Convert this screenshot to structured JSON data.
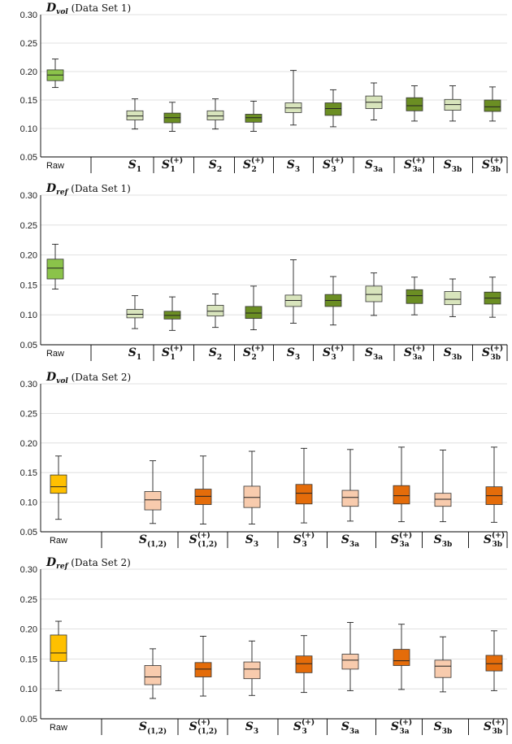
{
  "chart_data": [
    {
      "type": "box",
      "title": "D_vol (Data Set 1)",
      "title_parts": {
        "main": "D",
        "sub": "vol",
        "rest": "(Data Set 1)"
      },
      "ylim": [
        0.05,
        0.3
      ],
      "yticks": [
        "0.30",
        "0.25",
        "0.20",
        "0.15",
        "0.10",
        "0.05"
      ],
      "grid": true,
      "categories": [
        {
          "label": "Raw",
          "raw": true,
          "color": "#8bc34a",
          "min": 0.172,
          "q1": 0.184,
          "median": 0.194,
          "q3": 0.203,
          "max": 0.222
        },
        {
          "label": "S",
          "sub": "1",
          "sup": "",
          "color": "#d8e4bc",
          "min": 0.099,
          "q1": 0.115,
          "median": 0.122,
          "q3": 0.131,
          "max": 0.152
        },
        {
          "label": "S",
          "sub": "1",
          "sup": "(+)",
          "color": "#6b8e23",
          "min": 0.095,
          "q1": 0.11,
          "median": 0.119,
          "q3": 0.127,
          "max": 0.146
        },
        {
          "label": "S",
          "sub": "2",
          "sup": "",
          "color": "#d8e4bc",
          "min": 0.099,
          "q1": 0.115,
          "median": 0.122,
          "q3": 0.131,
          "max": 0.152
        },
        {
          "label": "S",
          "sub": "2",
          "sup": "(+)",
          "color": "#6b8e23",
          "min": 0.095,
          "q1": 0.111,
          "median": 0.119,
          "q3": 0.125,
          "max": 0.148
        },
        {
          "label": "S",
          "sub": "3",
          "sup": "",
          "color": "#d8e4bc",
          "min": 0.106,
          "q1": 0.128,
          "median": 0.136,
          "q3": 0.145,
          "max": 0.202
        },
        {
          "label": "S",
          "sub": "3",
          "sup": "(+)",
          "color": "#6b8e23",
          "min": 0.103,
          "q1": 0.123,
          "median": 0.135,
          "q3": 0.145,
          "max": 0.168
        },
        {
          "label": "S",
          "sub": "3a",
          "sup": "",
          "color": "#d8e4bc",
          "min": 0.115,
          "q1": 0.135,
          "median": 0.146,
          "q3": 0.157,
          "max": 0.18
        },
        {
          "label": "S",
          "sub": "3a",
          "sup": "(+)",
          "color": "#6b8e23",
          "min": 0.113,
          "q1": 0.131,
          "median": 0.14,
          "q3": 0.154,
          "max": 0.175
        },
        {
          "label": "S",
          "sub": "3b",
          "sup": "",
          "color": "#d8e4bc",
          "min": 0.113,
          "q1": 0.132,
          "median": 0.142,
          "q3": 0.151,
          "max": 0.175
        },
        {
          "label": "S",
          "sub": "3b",
          "sup": "(+)",
          "color": "#6b8e23",
          "min": 0.113,
          "q1": 0.13,
          "median": 0.138,
          "q3": 0.15,
          "max": 0.173
        }
      ]
    },
    {
      "type": "box",
      "title": "D_ref (Data Set 1)",
      "title_parts": {
        "main": "D",
        "sub": "ref",
        "rest": "(Data Set 1)"
      },
      "ylim": [
        0.05,
        0.3
      ],
      "yticks": [
        "0.30",
        "0.25",
        "0.20",
        "0.15",
        "0.10",
        "0.05"
      ],
      "grid": true,
      "categories": [
        {
          "label": "Raw",
          "raw": true,
          "color": "#8bc34a",
          "min": 0.143,
          "q1": 0.16,
          "median": 0.178,
          "q3": 0.193,
          "max": 0.218
        },
        {
          "label": "S",
          "sub": "1",
          "sup": "",
          "color": "#d8e4bc",
          "min": 0.077,
          "q1": 0.095,
          "median": 0.101,
          "q3": 0.109,
          "max": 0.132
        },
        {
          "label": "S",
          "sub": "1",
          "sup": "(+)",
          "color": "#6b8e23",
          "min": 0.074,
          "q1": 0.093,
          "median": 0.099,
          "q3": 0.106,
          "max": 0.13
        },
        {
          "label": "S",
          "sub": "2",
          "sup": "",
          "color": "#d8e4bc",
          "min": 0.079,
          "q1": 0.098,
          "median": 0.106,
          "q3": 0.116,
          "max": 0.135
        },
        {
          "label": "S",
          "sub": "2",
          "sup": "(+)",
          "color": "#6b8e23",
          "min": 0.075,
          "q1": 0.094,
          "median": 0.103,
          "q3": 0.114,
          "max": 0.148
        },
        {
          "label": "S",
          "sub": "3",
          "sup": "",
          "color": "#d8e4bc",
          "min": 0.086,
          "q1": 0.114,
          "median": 0.124,
          "q3": 0.133,
          "max": 0.192
        },
        {
          "label": "S",
          "sub": "3",
          "sup": "(+)",
          "color": "#6b8e23",
          "min": 0.083,
          "q1": 0.114,
          "median": 0.124,
          "q3": 0.134,
          "max": 0.164
        },
        {
          "label": "S",
          "sub": "3a",
          "sup": "",
          "color": "#d8e4bc",
          "min": 0.099,
          "q1": 0.122,
          "median": 0.134,
          "q3": 0.148,
          "max": 0.17
        },
        {
          "label": "S",
          "sub": "3a",
          "sup": "(+)",
          "color": "#6b8e23",
          "min": 0.1,
          "q1": 0.119,
          "median": 0.132,
          "q3": 0.142,
          "max": 0.163
        },
        {
          "label": "S",
          "sub": "3b",
          "sup": "",
          "color": "#d8e4bc",
          "min": 0.097,
          "q1": 0.117,
          "median": 0.126,
          "q3": 0.139,
          "max": 0.16
        },
        {
          "label": "S",
          "sub": "3b",
          "sup": "(+)",
          "color": "#6b8e23",
          "min": 0.096,
          "q1": 0.118,
          "median": 0.128,
          "q3": 0.138,
          "max": 0.163
        }
      ]
    },
    {
      "type": "box",
      "title": "D_vol (Data Set 2)",
      "title_parts": {
        "main": "D",
        "sub": "vol",
        "rest": "(Data Set 2)"
      },
      "ylim": [
        0.05,
        0.3
      ],
      "yticks": [
        "0.30",
        "0.25",
        "0.20",
        "0.15",
        "0.10",
        "0.05"
      ],
      "grid": true,
      "categories": [
        {
          "label": "Raw",
          "raw": true,
          "color": "#ffc000",
          "min": 0.071,
          "q1": 0.115,
          "median": 0.126,
          "q3": 0.146,
          "max": 0.178
        },
        {
          "label": "S",
          "sub": "(1,2)",
          "sup": "",
          "color": "#f8cbad",
          "min": 0.064,
          "q1": 0.087,
          "median": 0.104,
          "q3": 0.118,
          "max": 0.17
        },
        {
          "label": "S",
          "sub": "(1,2)",
          "sup": "(+)",
          "color": "#e46c0a",
          "min": 0.063,
          "q1": 0.096,
          "median": 0.11,
          "q3": 0.122,
          "max": 0.178
        },
        {
          "label": "S",
          "sub": "3",
          "sup": "",
          "color": "#f8cbad",
          "min": 0.063,
          "q1": 0.091,
          "median": 0.108,
          "q3": 0.127,
          "max": 0.186
        },
        {
          "label": "S",
          "sub": "3",
          "sup": "(+)",
          "color": "#e46c0a",
          "min": 0.065,
          "q1": 0.097,
          "median": 0.115,
          "q3": 0.13,
          "max": 0.191
        },
        {
          "label": "S",
          "sub": "3a",
          "sup": "",
          "color": "#f8cbad",
          "min": 0.068,
          "q1": 0.093,
          "median": 0.108,
          "q3": 0.12,
          "max": 0.189
        },
        {
          "label": "S",
          "sub": "3a",
          "sup": "(+)",
          "color": "#e46c0a",
          "min": 0.067,
          "q1": 0.097,
          "median": 0.111,
          "q3": 0.128,
          "max": 0.193
        },
        {
          "label": "S",
          "sub": "3b",
          "sup": "",
          "color": "#f8cbad",
          "min": 0.067,
          "q1": 0.093,
          "median": 0.105,
          "q3": 0.115,
          "max": 0.188
        },
        {
          "label": "S",
          "sub": "3b",
          "sup": "(+)",
          "color": "#e46c0a",
          "min": 0.066,
          "q1": 0.096,
          "median": 0.111,
          "q3": 0.126,
          "max": 0.193
        }
      ]
    },
    {
      "type": "box",
      "title": "D_ref (Data Set 2)",
      "title_parts": {
        "main": "D",
        "sub": "ref",
        "rest": "(Data Set 2)"
      },
      "ylim": [
        0.05,
        0.3
      ],
      "yticks": [
        "0.30",
        "0.25",
        "0.20",
        "0.15",
        "0.10",
        "0.05"
      ],
      "grid": true,
      "categories": [
        {
          "label": "Raw",
          "raw": true,
          "color": "#ffc000",
          "min": 0.097,
          "q1": 0.146,
          "median": 0.16,
          "q3": 0.19,
          "max": 0.213
        },
        {
          "label": "S",
          "sub": "(1,2)",
          "sup": "",
          "color": "#f8cbad",
          "min": 0.084,
          "q1": 0.107,
          "median": 0.12,
          "q3": 0.139,
          "max": 0.167
        },
        {
          "label": "S",
          "sub": "(1,2)",
          "sup": "(+)",
          "color": "#e46c0a",
          "min": 0.088,
          "q1": 0.12,
          "median": 0.133,
          "q3": 0.144,
          "max": 0.188
        },
        {
          "label": "S",
          "sub": "3",
          "sup": "",
          "color": "#f8cbad",
          "min": 0.089,
          "q1": 0.117,
          "median": 0.133,
          "q3": 0.145,
          "max": 0.18
        },
        {
          "label": "S",
          "sub": "3",
          "sup": "(+)",
          "color": "#e46c0a",
          "min": 0.094,
          "q1": 0.127,
          "median": 0.142,
          "q3": 0.155,
          "max": 0.189
        },
        {
          "label": "S",
          "sub": "3a",
          "sup": "",
          "color": "#f8cbad",
          "min": 0.097,
          "q1": 0.133,
          "median": 0.148,
          "q3": 0.158,
          "max": 0.211
        },
        {
          "label": "S",
          "sub": "3a",
          "sup": "(+)",
          "color": "#e46c0a",
          "min": 0.099,
          "q1": 0.139,
          "median": 0.147,
          "q3": 0.166,
          "max": 0.208
        },
        {
          "label": "S",
          "sub": "3b",
          "sup": "",
          "color": "#f8cbad",
          "min": 0.095,
          "q1": 0.119,
          "median": 0.138,
          "q3": 0.148,
          "max": 0.187
        },
        {
          "label": "S",
          "sub": "3b",
          "sup": "(+)",
          "color": "#e46c0a",
          "min": 0.097,
          "q1": 0.13,
          "median": 0.142,
          "q3": 0.156,
          "max": 0.197
        }
      ]
    }
  ]
}
